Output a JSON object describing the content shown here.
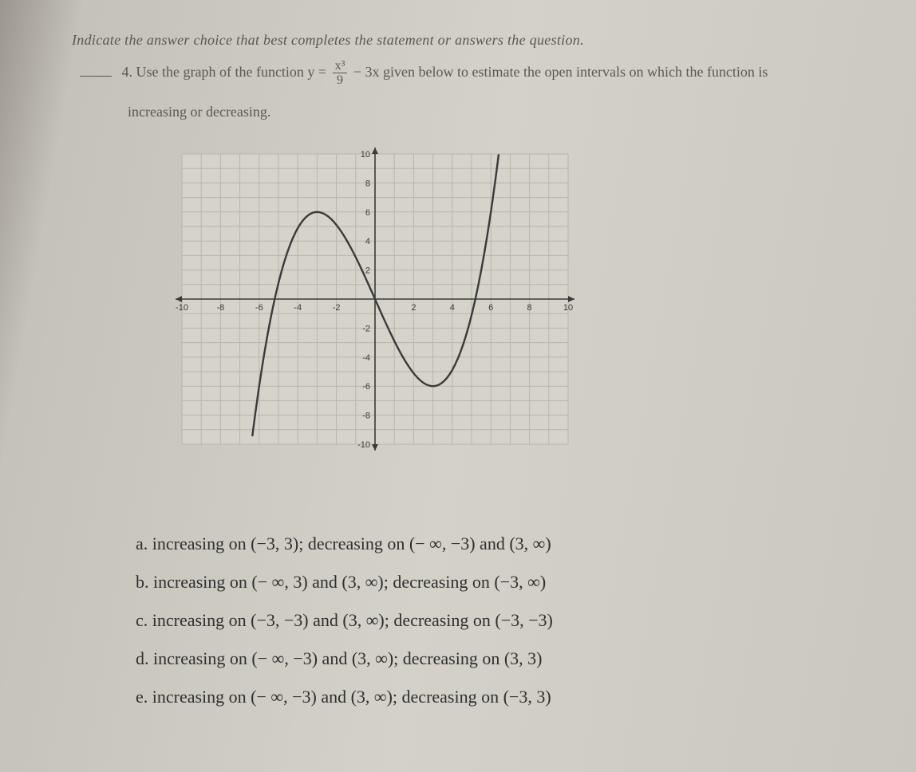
{
  "instruction": "Indicate the answer choice that best completes the statement or answers the question.",
  "question": {
    "number": "4.",
    "prefix": "Use the graph of the function y =",
    "frac_num": "x³",
    "frac_den": "9",
    "suffix": "− 3x given below to estimate the open intervals on which the function is",
    "line2": "increasing or decreasing."
  },
  "graph": {
    "xlim": [
      -10,
      10
    ],
    "ylim": [
      -10,
      10
    ],
    "tick_step": 2,
    "grid_color": "#b9b5ad",
    "axis_color": "#3a3a3a",
    "curve_color": "#3a3a3a",
    "curve_width": 2.4,
    "background": "#d6d3cb",
    "x_ticks": [
      -10,
      -8,
      -6,
      -4,
      -2,
      2,
      4,
      6,
      8,
      10
    ],
    "y_ticks": [
      -10,
      -8,
      -6,
      -4,
      -2,
      2,
      4,
      6,
      8,
      10
    ],
    "function": "x*x*x/9 - 3*x",
    "x_sample_min": -8,
    "x_sample_max": 8,
    "x_sample_step": 0.15
  },
  "choices": {
    "a": "a. increasing on (−3, 3); decreasing on (− ∞, −3) and (3, ∞)",
    "b": "b. increasing on (− ∞, 3) and (3, ∞); decreasing on (−3, ∞)",
    "c": "c. increasing on (−3, −3) and (3, ∞); decreasing on (−3, −3)",
    "d": "d. increasing on (− ∞, −3) and (3, ∞); decreasing on (3, 3)",
    "e": "e. increasing on (− ∞, −3) and (3, ∞); decreasing on (−3, 3)"
  }
}
